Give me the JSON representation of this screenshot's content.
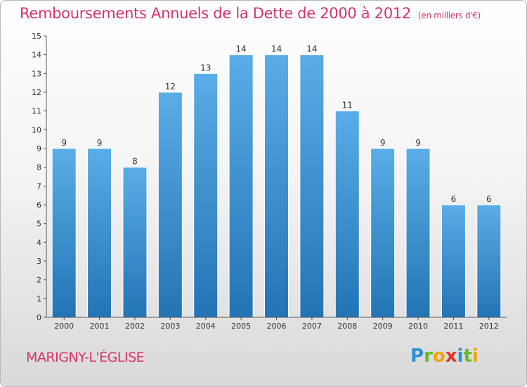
{
  "title": "Remboursements Annuels de la Dette de 2000 à 2012",
  "unit_note": "(en milliers d'€)",
  "commune": "MARIGNY-L'ÉGLISE",
  "logo": {
    "text": "Proxiti",
    "letters": [
      "P",
      "r",
      "o",
      "x",
      "i",
      "t",
      "i"
    ],
    "colors": [
      "#2a8fd6",
      "#6cb82e",
      "#f2a20a",
      "#e63329",
      "#2a8fd6",
      "#6cb82e",
      "#f2a20a"
    ]
  },
  "colors": {
    "title": "#d6336c",
    "bar_light": "#5aade6",
    "bar_dark": "#2374b5",
    "axis": "#555555"
  },
  "chart_data": {
    "type": "bar",
    "categories": [
      "2000",
      "2001",
      "2002",
      "2003",
      "2004",
      "2005",
      "2006",
      "2007",
      "2008",
      "2009",
      "2010",
      "2011",
      "2012"
    ],
    "values": [
      9,
      9,
      8,
      12,
      13,
      14,
      14,
      14,
      11,
      9,
      9,
      6,
      6
    ],
    "ylim": [
      0,
      15
    ],
    "yticks": [
      "0",
      "1",
      "2",
      "3",
      "4",
      "5",
      "6",
      "7",
      "8",
      "9",
      "10",
      "11",
      "12",
      "13",
      "14",
      "15"
    ],
    "grid": false
  }
}
